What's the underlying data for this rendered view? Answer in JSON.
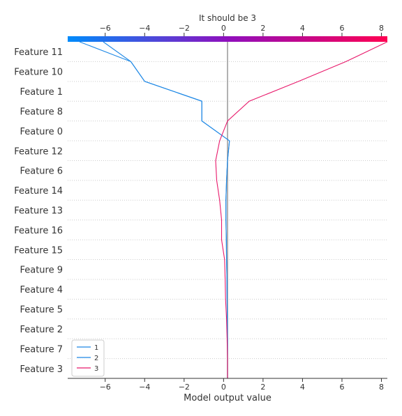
{
  "chart_data": {
    "type": "line",
    "title": "It should be 3",
    "xlabel": "Model output value",
    "ylabel": "",
    "xlim": [
      -7.9,
      8.3
    ],
    "x_ticks": [
      -6,
      -4,
      -2,
      0,
      2,
      4,
      6,
      8
    ],
    "x_tick_labels": [
      "−6",
      "−4",
      "−2",
      "0",
      "2",
      "4",
      "6",
      "8"
    ],
    "base_value": 0.2,
    "colorbar": {
      "from": "#008bfb",
      "mid": "#8f0fbd",
      "to": "#ff0052"
    },
    "features": [
      "Feature 11",
      "Feature 10",
      "Feature 1",
      "Feature 8",
      "Feature 0",
      "Feature 12",
      "Feature 6",
      "Feature 14",
      "Feature 13",
      "Feature 16",
      "Feature 15",
      "Feature 9",
      "Feature 4",
      "Feature 5",
      "Feature 2",
      "Feature 7",
      "Feature 3"
    ],
    "series": [
      {
        "name": "1",
        "color": "#1e88e5",
        "values": [
          -6.1,
          -4.7,
          -4.0,
          -1.1,
          -1.1,
          0.3,
          0.2,
          0.15,
          0.12,
          0.12,
          0.14,
          0.15,
          0.17,
          0.18,
          0.19,
          0.2,
          0.2,
          0.2
        ]
      },
      {
        "name": "2",
        "color": "#1e88e5",
        "values": [
          -7.3,
          -4.7,
          -4.0,
          -1.1,
          -1.1,
          0.3,
          0.2,
          0.15,
          0.12,
          0.12,
          0.14,
          0.15,
          0.17,
          0.18,
          0.19,
          0.2,
          0.2,
          0.2
        ]
      },
      {
        "name": "3",
        "color": "#e8196b",
        "values": [
          8.3,
          6.2,
          3.8,
          1.3,
          0.2,
          -0.2,
          -0.4,
          -0.35,
          -0.2,
          -0.1,
          -0.1,
          0.05,
          0.08,
          0.1,
          0.15,
          0.18,
          0.2,
          0.2
        ]
      }
    ],
    "legend": {
      "position": "lower-left",
      "entries": [
        "1",
        "2",
        "3"
      ]
    }
  }
}
